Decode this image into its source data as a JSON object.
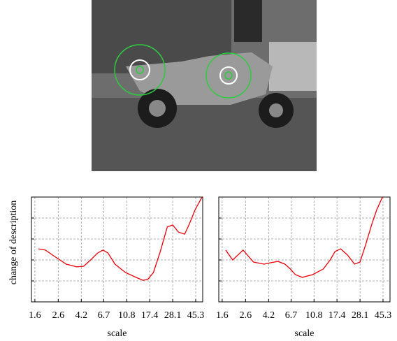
{
  "chart_data": [
    {
      "type": "line",
      "ylabel": "change of description",
      "xlabel": "scale",
      "xscale": "log",
      "grid": true,
      "x": [
        1.72,
        1.99,
        2.47,
        3.07,
        3.82,
        4.41,
        5.1,
        5.89,
        6.61,
        7.31,
        8.46,
        10.5,
        13.1,
        15.1,
        16.7,
        18.8,
        21.7,
        25.1,
        28.1,
        31.6,
        36.0,
        39.8,
        44.8,
        51.7
      ],
      "series": [
        {
          "color": "#e8000b",
          "values": [
            2.53,
            2.47,
            2.13,
            1.8,
            1.67,
            1.7,
            2.0,
            2.33,
            2.47,
            2.33,
            1.8,
            1.4,
            1.17,
            1.03,
            1.07,
            1.4,
            2.4,
            3.57,
            3.67,
            3.33,
            3.23,
            3.73,
            4.4,
            5.0
          ]
        }
      ],
      "xlim": [
        1.49,
        52.4
      ],
      "xticks": [
        1.6,
        2.6,
        4.2,
        6.7,
        10.8,
        17.4,
        28.1,
        45.3
      ],
      "ylim": [
        0,
        5
      ],
      "yticks": [
        0,
        1,
        2,
        3,
        4,
        5
      ]
    },
    {
      "type": "line",
      "xlabel": "scale",
      "xscale": "log",
      "grid": true,
      "x": [
        1.72,
        1.99,
        2.47,
        3.07,
        3.82,
        4.41,
        5.1,
        5.89,
        6.61,
        7.31,
        8.46,
        10.5,
        13.1,
        15.1,
        16.7,
        18.8,
        21.7,
        25.1,
        28.1,
        31.6,
        36.0,
        39.8,
        44.8
      ],
      "series": [
        {
          "color": "#e8000b",
          "values": [
            2.47,
            2.0,
            2.47,
            1.9,
            1.8,
            1.87,
            1.93,
            1.8,
            1.57,
            1.3,
            1.17,
            1.3,
            1.57,
            2.0,
            2.4,
            2.53,
            2.23,
            1.8,
            1.9,
            2.73,
            3.73,
            4.4,
            5.0
          ]
        }
      ],
      "xlim": [
        1.49,
        52.4
      ],
      "xticks": [
        1.6,
        2.6,
        4.2,
        6.7,
        10.8,
        17.4,
        28.1,
        45.3
      ],
      "ylim": [
        0,
        5
      ],
      "yticks": [
        0,
        1,
        2,
        3,
        4,
        5
      ]
    }
  ]
}
